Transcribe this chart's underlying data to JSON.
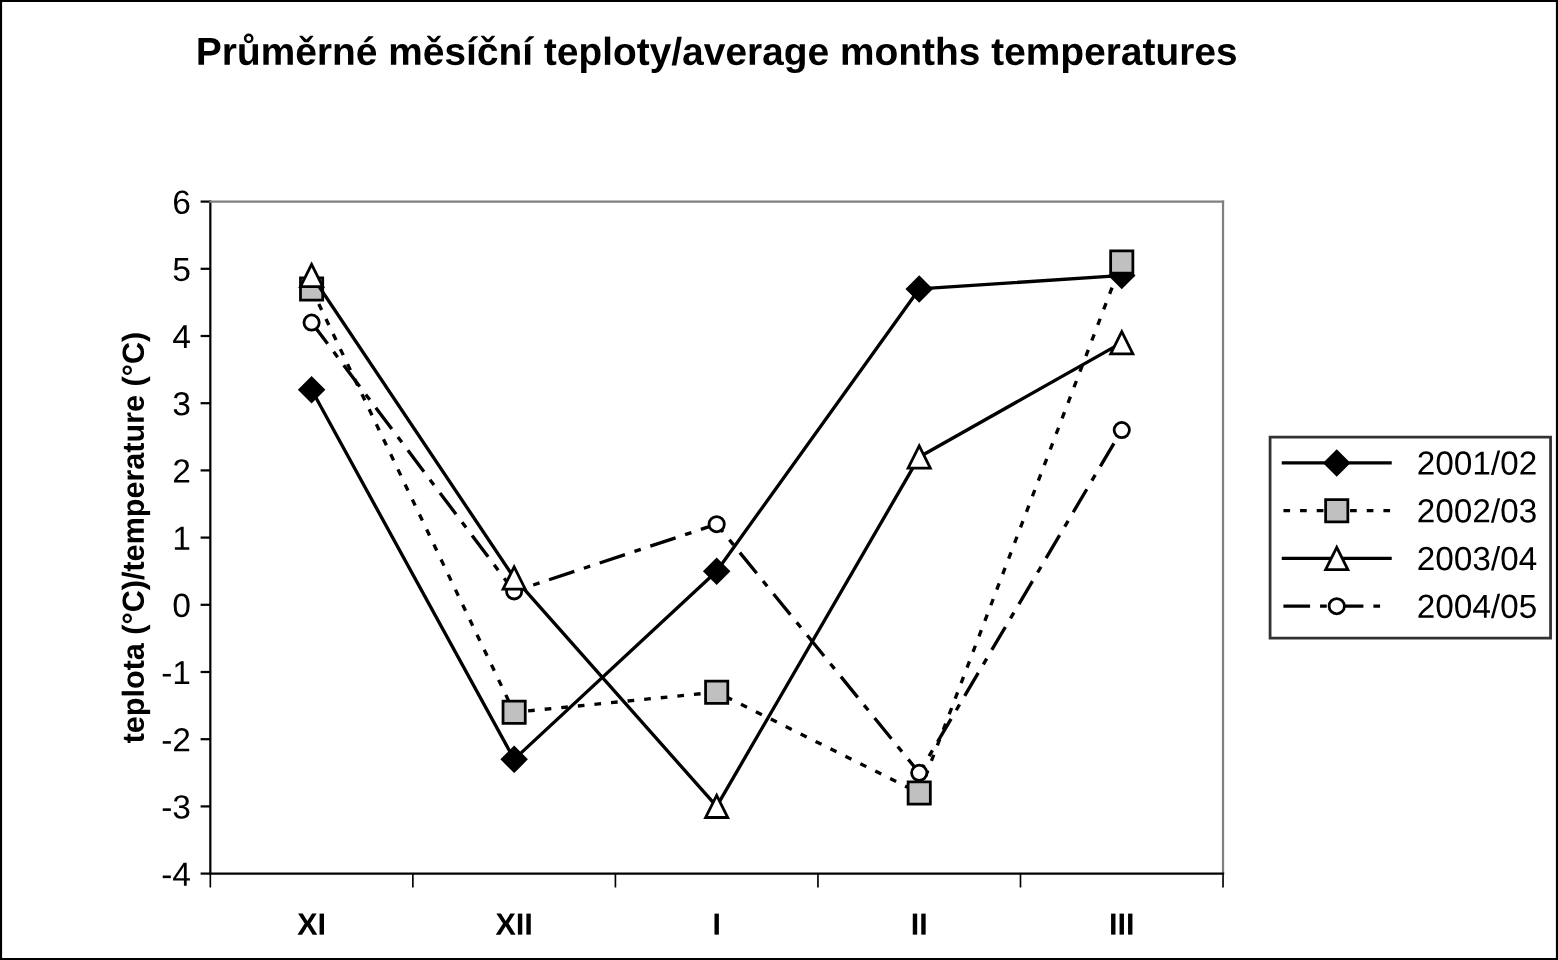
{
  "chart_data": {
    "type": "line",
    "title": "Průměrné měsíční teploty/average months temperatures",
    "ylabel": "teplota (°C)/temperature (°C)",
    "categories": [
      "XI",
      "XII",
      "I",
      "II",
      "III"
    ],
    "ylim": [
      -4,
      6
    ],
    "yticks": [
      -4,
      -3,
      -2,
      -1,
      0,
      1,
      2,
      3,
      4,
      5,
      6
    ],
    "grid": false,
    "legend": "right",
    "series": [
      {
        "name": "2001/02",
        "color": "#000000",
        "marker": "diamond",
        "line_style": "solid",
        "values": [
          3.2,
          -2.3,
          0.5,
          4.7,
          4.9
        ]
      },
      {
        "name": "2002/03",
        "color": "#000000",
        "marker": "square",
        "line_style": "dotted",
        "values": [
          4.7,
          -1.6,
          -1.3,
          -2.8,
          5.1
        ]
      },
      {
        "name": "2003/04",
        "color": "#000000",
        "marker": "triangle",
        "line_style": "solid",
        "values": [
          4.9,
          0.4,
          -3.0,
          2.2,
          3.9
        ]
      },
      {
        "name": "2004/05",
        "color": "#000000",
        "marker": "circle",
        "line_style": "dashed",
        "values": [
          4.2,
          0.2,
          1.2,
          -2.5,
          2.6
        ]
      }
    ]
  }
}
